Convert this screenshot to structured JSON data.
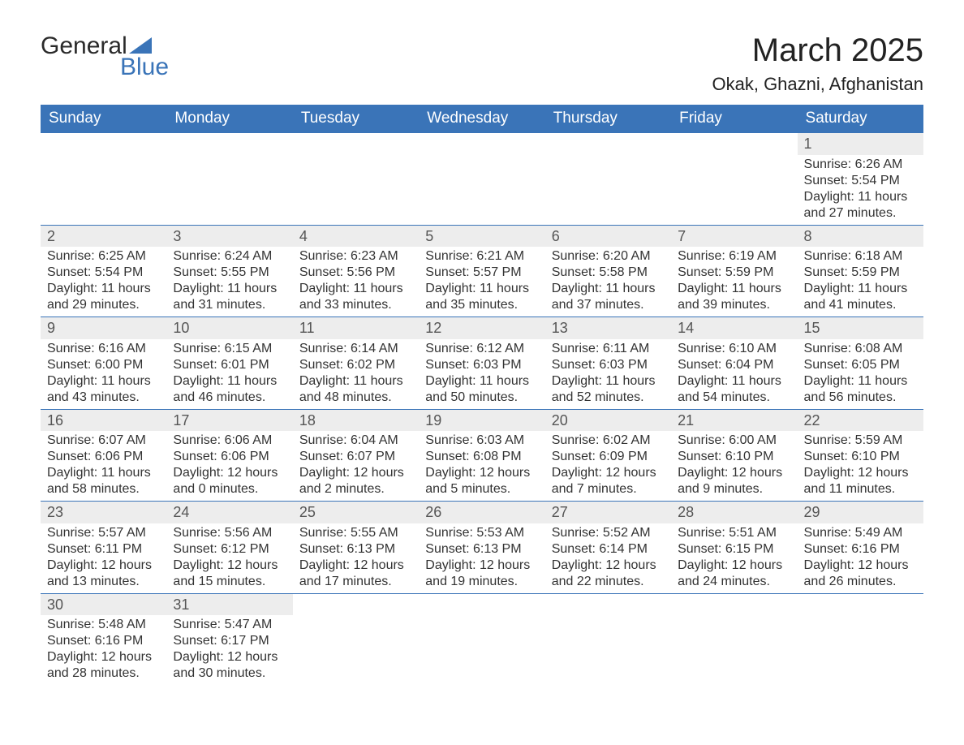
{
  "logo": {
    "text_top": "General",
    "text_bottom": "Blue",
    "triangle_color": "#3a74b8"
  },
  "title": "March 2025",
  "location": "Okak, Ghazni, Afghanistan",
  "colors": {
    "header_bg": "#3a74b8",
    "header_text": "#ffffff",
    "daynum_bg": "#ededed",
    "border": "#3a74b8",
    "text": "#333333",
    "background": "#ffffff"
  },
  "day_headers": [
    "Sunday",
    "Monday",
    "Tuesday",
    "Wednesday",
    "Thursday",
    "Friday",
    "Saturday"
  ],
  "weeks": [
    [
      null,
      null,
      null,
      null,
      null,
      null,
      {
        "n": "1",
        "sr": "Sunrise: 6:26 AM",
        "ss": "Sunset: 5:54 PM",
        "d1": "Daylight: 11 hours",
        "d2": "and 27 minutes."
      }
    ],
    [
      {
        "n": "2",
        "sr": "Sunrise: 6:25 AM",
        "ss": "Sunset: 5:54 PM",
        "d1": "Daylight: 11 hours",
        "d2": "and 29 minutes."
      },
      {
        "n": "3",
        "sr": "Sunrise: 6:24 AM",
        "ss": "Sunset: 5:55 PM",
        "d1": "Daylight: 11 hours",
        "d2": "and 31 minutes."
      },
      {
        "n": "4",
        "sr": "Sunrise: 6:23 AM",
        "ss": "Sunset: 5:56 PM",
        "d1": "Daylight: 11 hours",
        "d2": "and 33 minutes."
      },
      {
        "n": "5",
        "sr": "Sunrise: 6:21 AM",
        "ss": "Sunset: 5:57 PM",
        "d1": "Daylight: 11 hours",
        "d2": "and 35 minutes."
      },
      {
        "n": "6",
        "sr": "Sunrise: 6:20 AM",
        "ss": "Sunset: 5:58 PM",
        "d1": "Daylight: 11 hours",
        "d2": "and 37 minutes."
      },
      {
        "n": "7",
        "sr": "Sunrise: 6:19 AM",
        "ss": "Sunset: 5:59 PM",
        "d1": "Daylight: 11 hours",
        "d2": "and 39 minutes."
      },
      {
        "n": "8",
        "sr": "Sunrise: 6:18 AM",
        "ss": "Sunset: 5:59 PM",
        "d1": "Daylight: 11 hours",
        "d2": "and 41 minutes."
      }
    ],
    [
      {
        "n": "9",
        "sr": "Sunrise: 6:16 AM",
        "ss": "Sunset: 6:00 PM",
        "d1": "Daylight: 11 hours",
        "d2": "and 43 minutes."
      },
      {
        "n": "10",
        "sr": "Sunrise: 6:15 AM",
        "ss": "Sunset: 6:01 PM",
        "d1": "Daylight: 11 hours",
        "d2": "and 46 minutes."
      },
      {
        "n": "11",
        "sr": "Sunrise: 6:14 AM",
        "ss": "Sunset: 6:02 PM",
        "d1": "Daylight: 11 hours",
        "d2": "and 48 minutes."
      },
      {
        "n": "12",
        "sr": "Sunrise: 6:12 AM",
        "ss": "Sunset: 6:03 PM",
        "d1": "Daylight: 11 hours",
        "d2": "and 50 minutes."
      },
      {
        "n": "13",
        "sr": "Sunrise: 6:11 AM",
        "ss": "Sunset: 6:03 PM",
        "d1": "Daylight: 11 hours",
        "d2": "and 52 minutes."
      },
      {
        "n": "14",
        "sr": "Sunrise: 6:10 AM",
        "ss": "Sunset: 6:04 PM",
        "d1": "Daylight: 11 hours",
        "d2": "and 54 minutes."
      },
      {
        "n": "15",
        "sr": "Sunrise: 6:08 AM",
        "ss": "Sunset: 6:05 PM",
        "d1": "Daylight: 11 hours",
        "d2": "and 56 minutes."
      }
    ],
    [
      {
        "n": "16",
        "sr": "Sunrise: 6:07 AM",
        "ss": "Sunset: 6:06 PM",
        "d1": "Daylight: 11 hours",
        "d2": "and 58 minutes."
      },
      {
        "n": "17",
        "sr": "Sunrise: 6:06 AM",
        "ss": "Sunset: 6:06 PM",
        "d1": "Daylight: 12 hours",
        "d2": "and 0 minutes."
      },
      {
        "n": "18",
        "sr": "Sunrise: 6:04 AM",
        "ss": "Sunset: 6:07 PM",
        "d1": "Daylight: 12 hours",
        "d2": "and 2 minutes."
      },
      {
        "n": "19",
        "sr": "Sunrise: 6:03 AM",
        "ss": "Sunset: 6:08 PM",
        "d1": "Daylight: 12 hours",
        "d2": "and 5 minutes."
      },
      {
        "n": "20",
        "sr": "Sunrise: 6:02 AM",
        "ss": "Sunset: 6:09 PM",
        "d1": "Daylight: 12 hours",
        "d2": "and 7 minutes."
      },
      {
        "n": "21",
        "sr": "Sunrise: 6:00 AM",
        "ss": "Sunset: 6:10 PM",
        "d1": "Daylight: 12 hours",
        "d2": "and 9 minutes."
      },
      {
        "n": "22",
        "sr": "Sunrise: 5:59 AM",
        "ss": "Sunset: 6:10 PM",
        "d1": "Daylight: 12 hours",
        "d2": "and 11 minutes."
      }
    ],
    [
      {
        "n": "23",
        "sr": "Sunrise: 5:57 AM",
        "ss": "Sunset: 6:11 PM",
        "d1": "Daylight: 12 hours",
        "d2": "and 13 minutes."
      },
      {
        "n": "24",
        "sr": "Sunrise: 5:56 AM",
        "ss": "Sunset: 6:12 PM",
        "d1": "Daylight: 12 hours",
        "d2": "and 15 minutes."
      },
      {
        "n": "25",
        "sr": "Sunrise: 5:55 AM",
        "ss": "Sunset: 6:13 PM",
        "d1": "Daylight: 12 hours",
        "d2": "and 17 minutes."
      },
      {
        "n": "26",
        "sr": "Sunrise: 5:53 AM",
        "ss": "Sunset: 6:13 PM",
        "d1": "Daylight: 12 hours",
        "d2": "and 19 minutes."
      },
      {
        "n": "27",
        "sr": "Sunrise: 5:52 AM",
        "ss": "Sunset: 6:14 PM",
        "d1": "Daylight: 12 hours",
        "d2": "and 22 minutes."
      },
      {
        "n": "28",
        "sr": "Sunrise: 5:51 AM",
        "ss": "Sunset: 6:15 PM",
        "d1": "Daylight: 12 hours",
        "d2": "and 24 minutes."
      },
      {
        "n": "29",
        "sr": "Sunrise: 5:49 AM",
        "ss": "Sunset: 6:16 PM",
        "d1": "Daylight: 12 hours",
        "d2": "and 26 minutes."
      }
    ],
    [
      {
        "n": "30",
        "sr": "Sunrise: 5:48 AM",
        "ss": "Sunset: 6:16 PM",
        "d1": "Daylight: 12 hours",
        "d2": "and 28 minutes."
      },
      {
        "n": "31",
        "sr": "Sunrise: 5:47 AM",
        "ss": "Sunset: 6:17 PM",
        "d1": "Daylight: 12 hours",
        "d2": "and 30 minutes."
      },
      null,
      null,
      null,
      null,
      null
    ]
  ]
}
